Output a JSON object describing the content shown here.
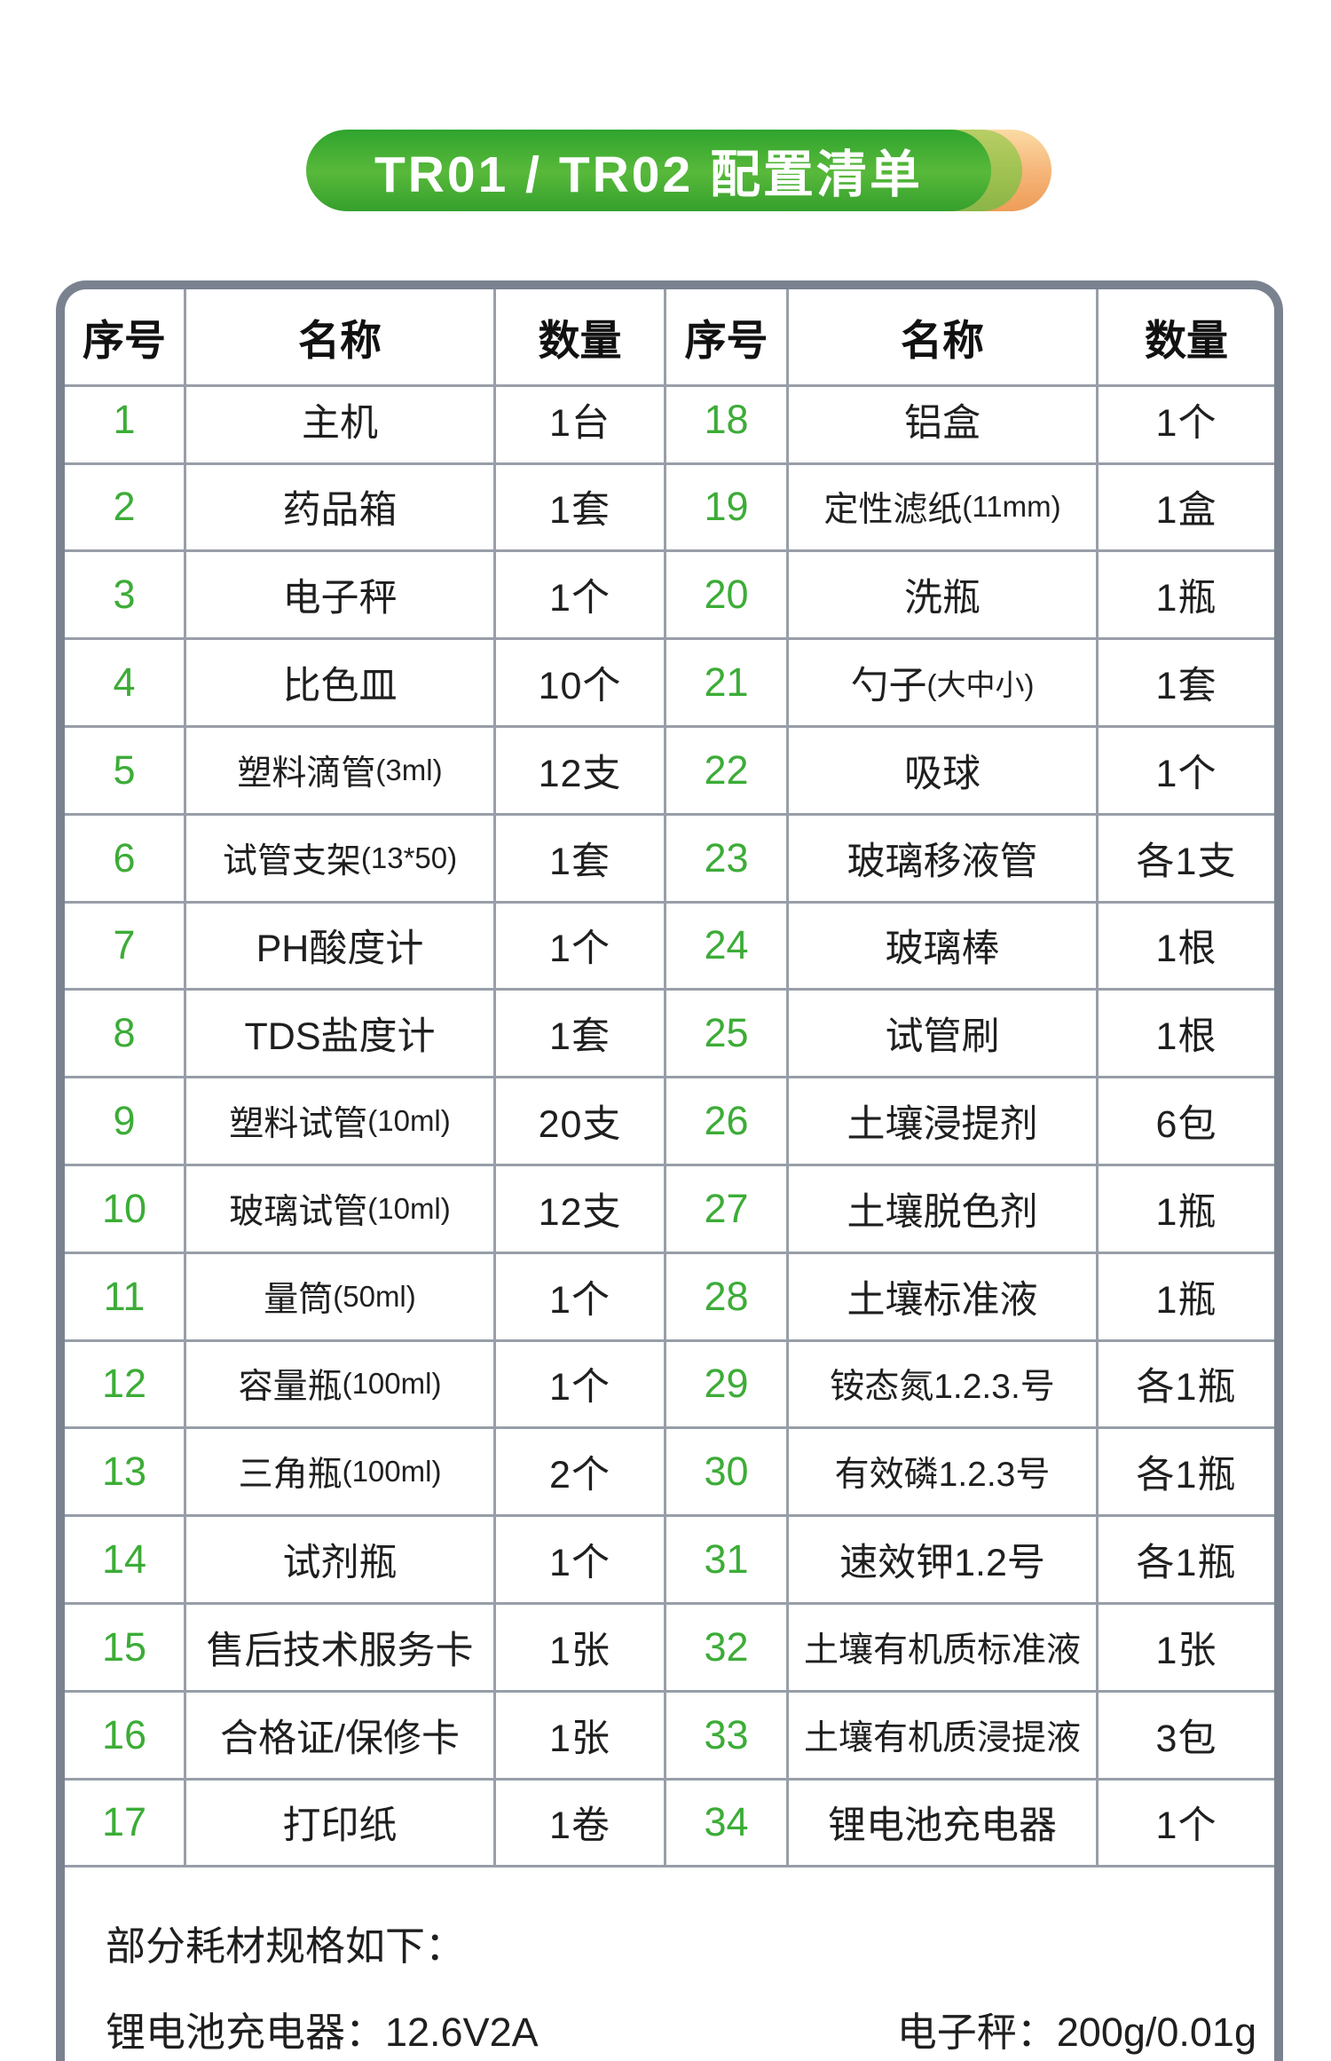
{
  "banner": {
    "title": "TR01 / TR02 配置清单"
  },
  "table": {
    "headers": [
      "序号",
      "名称",
      "数量",
      "序号",
      "名称",
      "数量"
    ],
    "left_rows": [
      {
        "no": "1",
        "name": "主机",
        "qty": "1台"
      },
      {
        "no": "2",
        "name": "药品箱",
        "qty": "1套"
      },
      {
        "no": "3",
        "name": "电子秤",
        "qty": "1个"
      },
      {
        "no": "4",
        "name": "比色皿",
        "qty": "10个"
      },
      {
        "no": "5",
        "name": "塑料滴管(3ml)",
        "qty": "12支"
      },
      {
        "no": "6",
        "name": "试管支架(13*50)",
        "qty": "1套"
      },
      {
        "no": "7",
        "name": "PH酸度计",
        "qty": "1个"
      },
      {
        "no": "8",
        "name": "TDS盐度计",
        "qty": "1套"
      },
      {
        "no": "9",
        "name": "塑料试管(10ml)",
        "qty": "20支"
      },
      {
        "no": "10",
        "name": "玻璃试管(10ml)",
        "qty": "12支"
      },
      {
        "no": "11",
        "name": "量筒(50ml)",
        "qty": "1个"
      },
      {
        "no": "12",
        "name": "容量瓶(100ml)",
        "qty": "1个"
      },
      {
        "no": "13",
        "name": "三角瓶(100ml)",
        "qty": "2个"
      },
      {
        "no": "14",
        "name": "试剂瓶",
        "qty": "1个"
      },
      {
        "no": "15",
        "name": "售后技术服务卡",
        "qty": "1张"
      },
      {
        "no": "16",
        "name": "合格证/保修卡",
        "qty": "1张"
      },
      {
        "no": "17",
        "name": "打印纸",
        "qty": "1卷"
      }
    ],
    "right_rows": [
      {
        "no": "18",
        "name": "铝盒",
        "qty": "1个"
      },
      {
        "no": "19",
        "name": "定性滤纸(11mm)",
        "qty": "1盒"
      },
      {
        "no": "20",
        "name": "洗瓶",
        "qty": "1瓶"
      },
      {
        "no": "21",
        "name": "勺子(大中小)",
        "qty": "1套"
      },
      {
        "no": "22",
        "name": "吸球",
        "qty": "1个"
      },
      {
        "no": "23",
        "name": "玻璃移液管",
        "qty": "各1支"
      },
      {
        "no": "24",
        "name": "玻璃棒",
        "qty": "1根"
      },
      {
        "no": "25",
        "name": "试管刷",
        "qty": "1根"
      },
      {
        "no": "26",
        "name": "土壤浸提剂",
        "qty": "6包"
      },
      {
        "no": "27",
        "name": "土壤脱色剂",
        "qty": "1瓶"
      },
      {
        "no": "28",
        "name": "土壤标准液",
        "qty": "1瓶"
      },
      {
        "no": "29",
        "name": "铵态氮1.2.3.号",
        "qty": "各1瓶"
      },
      {
        "no": "30",
        "name": "有效磷1.2.3号",
        "qty": "各1瓶"
      },
      {
        "no": "31",
        "name": "速效钾1.2号",
        "qty": "各1瓶"
      },
      {
        "no": "32",
        "name": "土壤有机质标准液",
        "qty": "1张"
      },
      {
        "no": "33",
        "name": "土壤有机质浸提液",
        "qty": "3包"
      },
      {
        "no": "34",
        "name": "锂电池充电器",
        "qty": "1个"
      }
    ]
  },
  "footer": {
    "note_title": "部分耗材规格如下：",
    "spec_left": "锂电池充电器：12.6V2A",
    "spec_right": "电子秤：200g/0.01g"
  },
  "colors": {
    "accent_green": "#3cac37",
    "banner_green": "#3aa52f",
    "banner_olive": "#9dc04f",
    "banner_orange": "#f0a25c",
    "table_border": "#7a8290",
    "grid_line": "#989ea8"
  }
}
